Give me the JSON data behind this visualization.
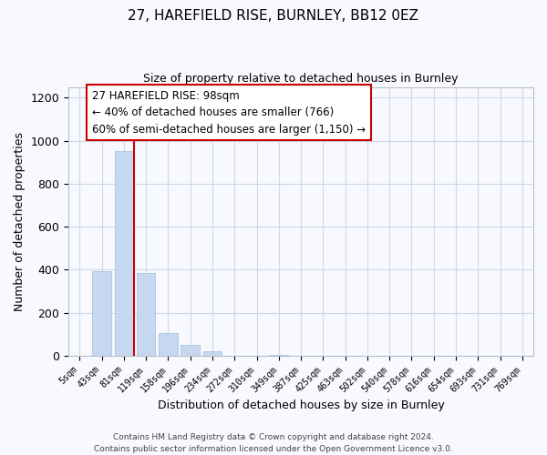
{
  "title": "27, HAREFIELD RISE, BURNLEY, BB12 0EZ",
  "subtitle": "Size of property relative to detached houses in Burnley",
  "xlabel": "Distribution of detached houses by size in Burnley",
  "ylabel": "Number of detached properties",
  "bin_labels": [
    "5sqm",
    "43sqm",
    "81sqm",
    "119sqm",
    "158sqm",
    "196sqm",
    "234sqm",
    "272sqm",
    "310sqm",
    "349sqm",
    "387sqm",
    "425sqm",
    "463sqm",
    "502sqm",
    "540sqm",
    "578sqm",
    "616sqm",
    "654sqm",
    "693sqm",
    "731sqm",
    "769sqm"
  ],
  "bar_heights": [
    0,
    395,
    950,
    385,
    105,
    50,
    22,
    0,
    0,
    5,
    0,
    0,
    0,
    0,
    0,
    0,
    0,
    0,
    0,
    0,
    0
  ],
  "bar_color": "#c5d8f0",
  "bar_edge_color": "#a0bcd8",
  "property_line_color": "#cc0000",
  "annotation_text": "27 HAREFIELD RISE: 98sqm\n← 40% of detached houses are smaller (766)\n60% of semi-detached houses are larger (1,150) →",
  "annotation_box_color": "#ffffff",
  "annotation_box_edge": "#cc0000",
  "ylim": [
    0,
    1250
  ],
  "yticks": [
    0,
    200,
    400,
    600,
    800,
    1000,
    1200
  ],
  "footer_line1": "Contains HM Land Registry data © Crown copyright and database right 2024.",
  "footer_line2": "Contains public sector information licensed under the Open Government Licence v3.0.",
  "bg_color": "#f8f8ff",
  "grid_color": "#d0d8e8"
}
